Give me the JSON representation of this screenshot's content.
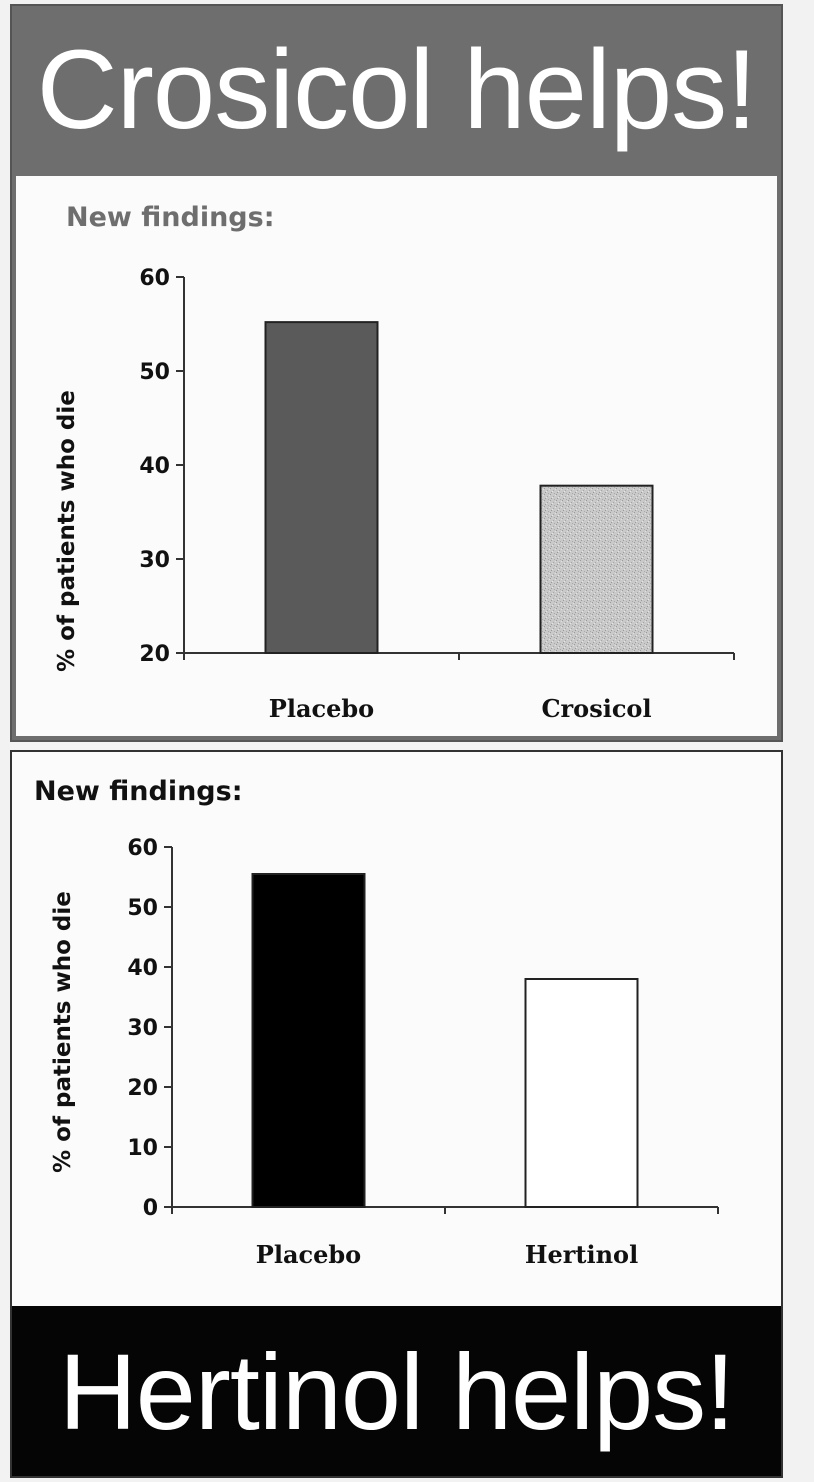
{
  "top": {
    "banner": "Crosicol helps!",
    "banner_bg": "#6e6e6e",
    "chart_data": {
      "type": "bar",
      "title": "New findings:",
      "title_color": "#6e6e6e",
      "ylabel": "% of patients who die",
      "categories": [
        "Placebo",
        "Crosicol"
      ],
      "values": [
        55.2,
        37.8
      ],
      "ylim": [
        20,
        60
      ],
      "yticks": [
        20,
        30,
        40,
        50,
        60
      ],
      "bar_colors": [
        "#5a5a5a",
        "#c4c4c4"
      ],
      "grid": false
    }
  },
  "bottom": {
    "banner": "Hertinol helps!",
    "banner_bg": "#050505",
    "chart_data": {
      "type": "bar",
      "title": "New findings:",
      "title_color": "#111111",
      "ylabel": "% of patients who die",
      "categories": [
        "Placebo",
        "Hertinol"
      ],
      "values": [
        55.5,
        38
      ],
      "ylim": [
        0,
        60
      ],
      "yticks": [
        0,
        10,
        20,
        30,
        40,
        50,
        60
      ],
      "bar_colors": [
        "#000000",
        "#ffffff"
      ],
      "grid": false
    }
  }
}
